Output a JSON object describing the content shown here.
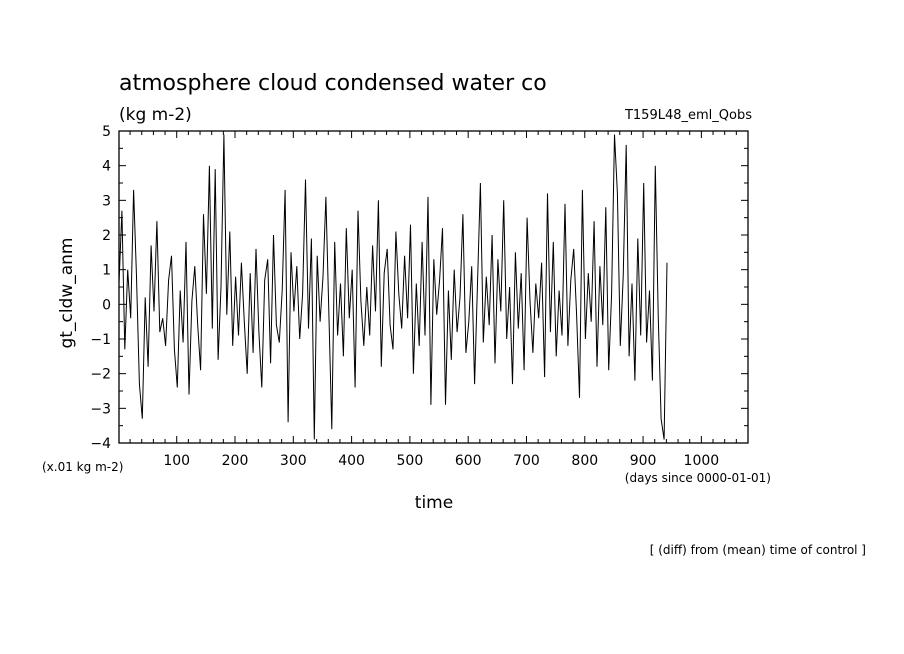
{
  "chart_data": {
    "type": "line",
    "title": "atmosphere cloud condensed water co",
    "units": "(kg m-2)",
    "run_label": "T159L48_eml_Qobs",
    "ylabel": "gt_cldw_anm",
    "xlabel": "time",
    "y_unit_note": "(x.01 kg m-2)",
    "x_unit_note": "(days since 0000-01-01)",
    "footnote": "[ (diff) from (mean) time of control ]",
    "xlim": [
      1,
      1080
    ],
    "ylim": [
      -4,
      5
    ],
    "x_ticks": [
      100,
      200,
      300,
      400,
      500,
      600,
      700,
      800,
      900,
      1000
    ],
    "y_ticks": [
      -4,
      -3,
      -2,
      -1,
      0,
      1,
      2,
      3,
      4,
      5
    ],
    "grid": false,
    "series": [
      {
        "x_start": 1,
        "x_step": 5,
        "values": [
          0.6,
          2.7,
          -1.3,
          1.0,
          -0.4,
          3.3,
          0.8,
          -2.3,
          -3.3,
          0.2,
          -1.8,
          1.7,
          -0.2,
          2.4,
          -0.8,
          -0.4,
          -1.2,
          0.7,
          1.4,
          -1.3,
          -2.4,
          0.4,
          -1.1,
          1.8,
          -2.6,
          0.1,
          1.1,
          -0.6,
          -1.9,
          2.6,
          0.3,
          4.0,
          -0.7,
          3.9,
          -1.6,
          0.5,
          4.9,
          -0.3,
          2.1,
          -1.2,
          0.8,
          -0.9,
          1.2,
          -0.5,
          -2.0,
          0.9,
          -1.4,
          1.6,
          -0.8,
          -2.4,
          0.7,
          1.3,
          -1.7,
          2.0,
          -0.6,
          -1.1,
          0.4,
          3.3,
          -3.4,
          1.5,
          -0.2,
          1.1,
          -1.0,
          0.3,
          3.6,
          -0.7,
          1.9,
          -3.9,
          1.4,
          -0.5,
          0.8,
          3.1,
          -0.3,
          -3.6,
          1.8,
          -0.9,
          0.6,
          -1.5,
          2.2,
          -0.4,
          1.0,
          -2.4,
          2.7,
          0.1,
          -1.2,
          0.5,
          -0.9,
          1.7,
          -0.2,
          3.0,
          -1.8,
          0.9,
          1.6,
          -0.6,
          -1.3,
          2.1,
          0.3,
          -0.7,
          1.4,
          -0.4,
          2.3,
          -2.0,
          0.6,
          -1.2,
          1.8,
          -0.9,
          3.1,
          -2.9,
          1.3,
          -0.3,
          0.7,
          2.2,
          -2.9,
          0.4,
          -1.6,
          1.0,
          -0.8,
          0.2,
          2.6,
          -1.4,
          -0.5,
          1.1,
          -2.3,
          0.6,
          3.5,
          -1.1,
          0.8,
          -0.6,
          2.0,
          -1.7,
          1.3,
          -0.2,
          3.0,
          -1.0,
          0.5,
          -2.3,
          1.5,
          -0.7,
          0.9,
          -1.9,
          2.5,
          0.1,
          -1.4,
          0.6,
          -0.4,
          1.2,
          -2.1,
          3.2,
          -0.8,
          1.8,
          -1.5,
          0.4,
          -0.9,
          2.9,
          -1.2,
          0.7,
          1.6,
          -0.3,
          -2.7,
          3.3,
          -1.0,
          0.9,
          -0.5,
          2.4,
          -1.8,
          1.1,
          -0.6,
          2.8,
          -1.9,
          0.3,
          4.9,
          3.2,
          -1.2,
          0.8,
          4.6,
          -1.5,
          0.6,
          -2.2,
          1.9,
          -0.9,
          3.5,
          -1.1,
          0.4,
          -2.2,
          4.0,
          -0.3,
          -3.3,
          -3.9,
          1.2
        ]
      }
    ]
  }
}
